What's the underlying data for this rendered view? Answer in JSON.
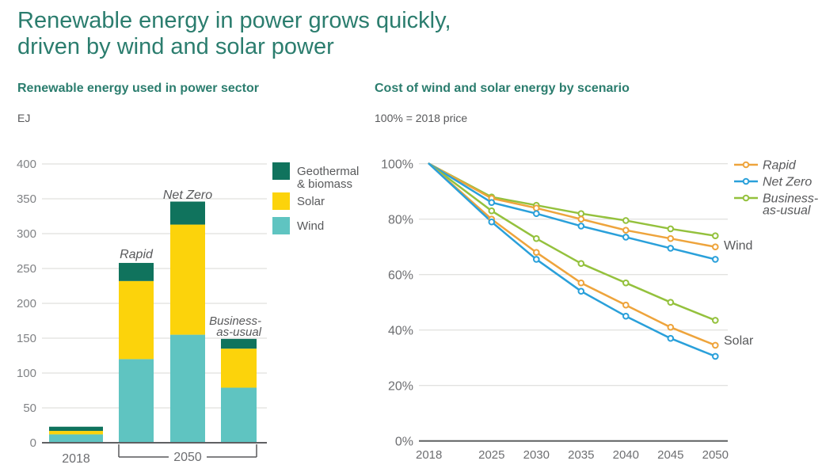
{
  "page": {
    "title_line1": "Renewable energy in power grows quickly,",
    "title_line2": "driven by wind and solar power"
  },
  "colors": {
    "title_teal": "#2b7d6e",
    "text_dark": "#58595b",
    "tick_gray": "#808285",
    "gridline": "#d8d8d6",
    "axis_dark": "#5f6062",
    "wind_teal": "#5fc4c1",
    "solar_yellow": "#fcd30b",
    "geothermal_green": "#10735d",
    "rapid_orange": "#eea43c",
    "netzero_blue": "#2aa0da",
    "bau_green": "#94c13d"
  },
  "left_chart": {
    "heading": "Renewable energy used in power sector",
    "unit_label": "EJ",
    "x_first_label": "2018",
    "x_bracket_label": "2050",
    "annotations": {
      "rapid": "Rapid",
      "net_zero": "Net Zero",
      "bau_line1": "Business-",
      "bau_line2": "as-usual"
    },
    "legend": [
      {
        "label_lines": [
          "Geothermal",
          "& biomass"
        ],
        "color_key": "geothermal_green"
      },
      {
        "label_lines": [
          "Solar"
        ],
        "color_key": "solar_yellow"
      },
      {
        "label_lines": [
          "Wind"
        ],
        "color_key": "wind_teal"
      }
    ]
  },
  "right_chart": {
    "heading": "Cost of wind and solar energy by scenario",
    "subtitle": "100% = 2018 price",
    "legend": [
      {
        "label_lines": [
          "Rapid"
        ],
        "color_key": "rapid_orange"
      },
      {
        "label_lines": [
          "Net Zero"
        ],
        "color_key": "netzero_blue"
      },
      {
        "label_lines": [
          "Business-",
          "as-usual"
        ],
        "color_key": "bau_green"
      }
    ],
    "line_labels": {
      "wind": "Wind",
      "solar": "Solar"
    }
  },
  "chart_data": [
    {
      "type": "bar",
      "stacked": true,
      "title": "Renewable energy used in power sector",
      "ylabel": "EJ",
      "ylim": [
        0,
        400
      ],
      "ytick_step": 50,
      "grid": true,
      "legend_position": "right",
      "categories": [
        "2018",
        "Rapid (2050)",
        "Net Zero (2050)",
        "Business-as-usual (2050)"
      ],
      "series": [
        {
          "name": "Wind",
          "color_key": "wind_teal",
          "values": [
            12,
            120,
            155,
            79
          ]
        },
        {
          "name": "Solar",
          "color_key": "solar_yellow",
          "values": [
            5,
            112,
            158,
            56
          ]
        },
        {
          "name": "Geothermal & biomass",
          "color_key": "geothermal_green",
          "values": [
            6,
            26,
            33,
            14
          ]
        }
      ],
      "totals": [
        23,
        258,
        346,
        149
      ]
    },
    {
      "type": "line",
      "title": "Cost of wind and solar energy by scenario",
      "subtitle": "100% = 2018 price",
      "x": [
        2018,
        2025,
        2030,
        2035,
        2040,
        2045,
        2050
      ],
      "ylim": [
        0,
        100
      ],
      "ytick_step": 20,
      "y_unit": "%",
      "grid": true,
      "legend_position": "right",
      "series": [
        {
          "name": "Rapid",
          "group": "Wind",
          "color_key": "rapid_orange",
          "values": [
            100,
            87.5,
            84,
            80,
            76,
            73,
            70
          ]
        },
        {
          "name": "Net Zero",
          "group": "Wind",
          "color_key": "netzero_blue",
          "values": [
            100,
            86,
            82,
            77.5,
            73.5,
            69.5,
            65.5
          ]
        },
        {
          "name": "Business-as-usual",
          "group": "Wind",
          "color_key": "bau_green",
          "values": [
            100,
            88,
            85,
            82,
            79.5,
            76.5,
            74
          ]
        },
        {
          "name": "Rapid",
          "group": "Solar",
          "color_key": "rapid_orange",
          "values": [
            100,
            80,
            68,
            57,
            49,
            41,
            34.5
          ]
        },
        {
          "name": "Net Zero",
          "group": "Solar",
          "color_key": "netzero_blue",
          "values": [
            100,
            79,
            65.5,
            54,
            45,
            37,
            30.5
          ]
        },
        {
          "name": "Business-as-usual",
          "group": "Solar",
          "color_key": "bau_green",
          "values": [
            100,
            83,
            73,
            64,
            57,
            50,
            43.5
          ]
        }
      ]
    }
  ]
}
